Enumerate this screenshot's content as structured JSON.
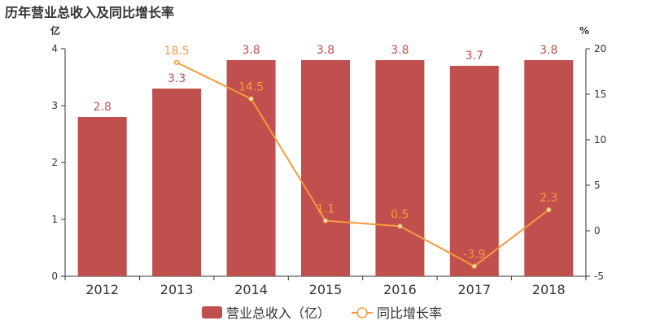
{
  "chart_data": {
    "type": "bar",
    "title": "历年营业总收入及同比增长率",
    "categories": [
      "2012",
      "2013",
      "2014",
      "2015",
      "2016",
      "2017",
      "2018"
    ],
    "series": [
      {
        "name": "营业总收入（亿）",
        "type": "bar",
        "axis": "left",
        "values": [
          2.8,
          3.3,
          3.8,
          3.8,
          3.8,
          3.7,
          3.8
        ],
        "labels": [
          "2.8",
          "3.3",
          "3.8",
          "3.8",
          "3.8",
          "3.7",
          "3.8"
        ],
        "color": "#c0504d"
      },
      {
        "name": "同比增长率",
        "type": "line",
        "axis": "right",
        "values": [
          null,
          18.5,
          14.5,
          1.1,
          0.5,
          -3.9,
          2.3
        ],
        "labels": [
          "",
          "18.5",
          "14.5",
          "1.1",
          "0.5",
          "-3.9",
          "2.3"
        ],
        "color": "#f79a3e"
      }
    ],
    "y_left": {
      "unit": "亿",
      "lim": [
        0,
        4
      ],
      "ticks": [
        "0",
        "1",
        "2",
        "3",
        "4"
      ]
    },
    "y_right": {
      "unit": "%",
      "lim": [
        -5,
        20
      ],
      "ticks": [
        "-5",
        "0",
        "5",
        "10",
        "15",
        "20"
      ]
    },
    "legend_position": "bottom-center",
    "grid": false
  }
}
